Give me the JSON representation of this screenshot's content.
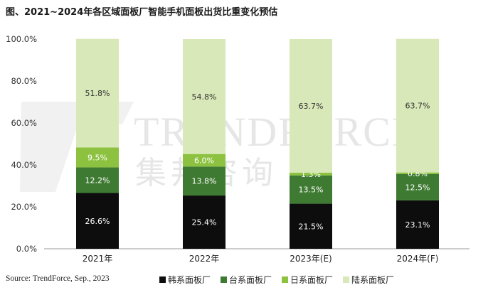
{
  "title": "图、2021~2024年各区域面板厂智能手机面板出货比重变化预估",
  "source": "Source: TrendForce, Sep., 2023",
  "watermark": {
    "text": "TRENDFORCE",
    "cn_text": "集邦咨询"
  },
  "colors": {
    "韩系面板厂": "#0d0d0d",
    "台系面板厂": "#3f7a33",
    "日系面板厂": "#8cc23f",
    "陆系面板厂": "#d9e8b8"
  },
  "chart_data": {
    "type": "bar",
    "stacked": true,
    "title": "图、2021~2024年各区域面板厂智能手机面板出货比重变化预估",
    "categories": [
      "2021年",
      "2022年",
      "2023年(E)",
      "2024年(F)"
    ],
    "series": [
      {
        "name": "韩系面板厂",
        "values": [
          26.6,
          25.4,
          21.5,
          23.1
        ],
        "labels": [
          "26.6%",
          "25.4%",
          "21.5%",
          "23.1%"
        ]
      },
      {
        "name": "台系面板厂",
        "values": [
          12.2,
          13.8,
          13.5,
          12.5
        ],
        "labels": [
          "12.2%",
          "13.8%",
          "13.5%",
          "12.5%"
        ]
      },
      {
        "name": "日系面板厂",
        "values": [
          9.5,
          6.0,
          1.3,
          0.8
        ],
        "labels": [
          "9.5%",
          "6.0%",
          "1.3%",
          "0.8%"
        ]
      },
      {
        "name": "陆系面板厂",
        "values": [
          51.8,
          54.8,
          63.7,
          63.7
        ],
        "labels": [
          "51.8%",
          "54.8%",
          "63.7%",
          "63.7%"
        ]
      }
    ],
    "ylim": [
      0,
      100
    ],
    "yticks": [
      "0.0%",
      "20.0%",
      "40.0%",
      "60.0%",
      "80.0%",
      "100.0%"
    ],
    "legend_position": "bottom",
    "grid": false
  }
}
